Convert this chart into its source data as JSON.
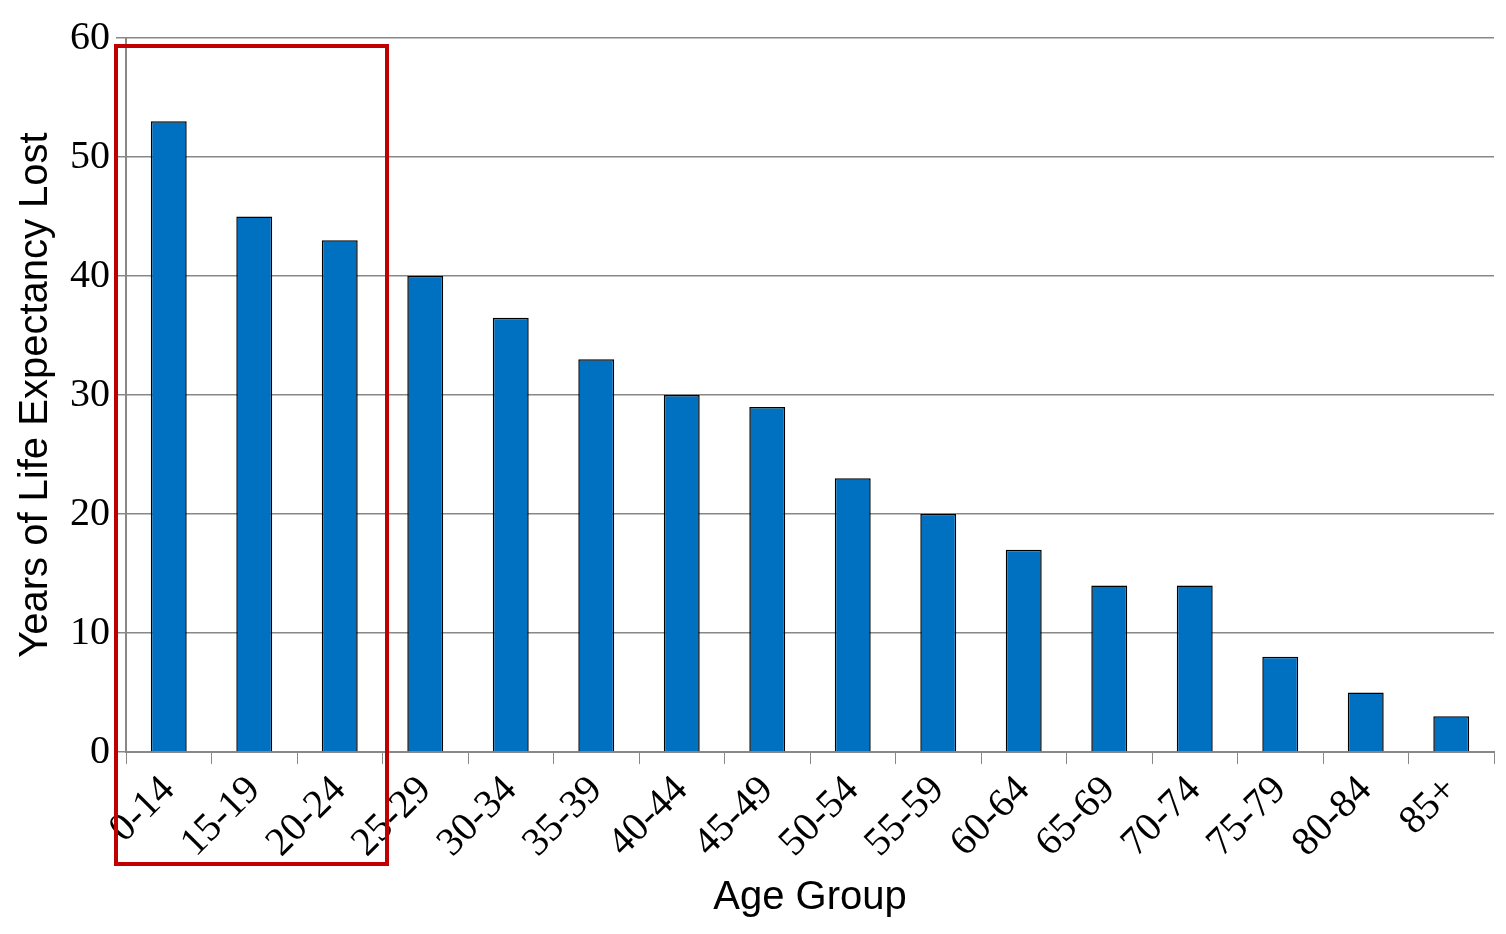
{
  "chart_data": {
    "type": "bar",
    "xlabel": "Age Group",
    "ylabel": "Years of Life Expectancy Lost",
    "categories": [
      "0-14",
      "15-19",
      "20-24",
      "25-29",
      "30-34",
      "35-39",
      "40-44",
      "45-49",
      "50-54",
      "55-59",
      "60-64",
      "65-69",
      "70-74",
      "75-79",
      "80-84",
      "85+"
    ],
    "values": [
      53,
      45,
      43,
      40,
      36.5,
      33,
      30,
      29,
      23,
      20,
      17,
      14,
      14,
      8,
      5,
      3
    ],
    "color": "#0070c0",
    "ylim": [
      0,
      60
    ],
    "yticks": [
      0,
      10,
      20,
      30,
      40,
      50,
      60
    ],
    "grid": "y",
    "legend": false
  }
}
